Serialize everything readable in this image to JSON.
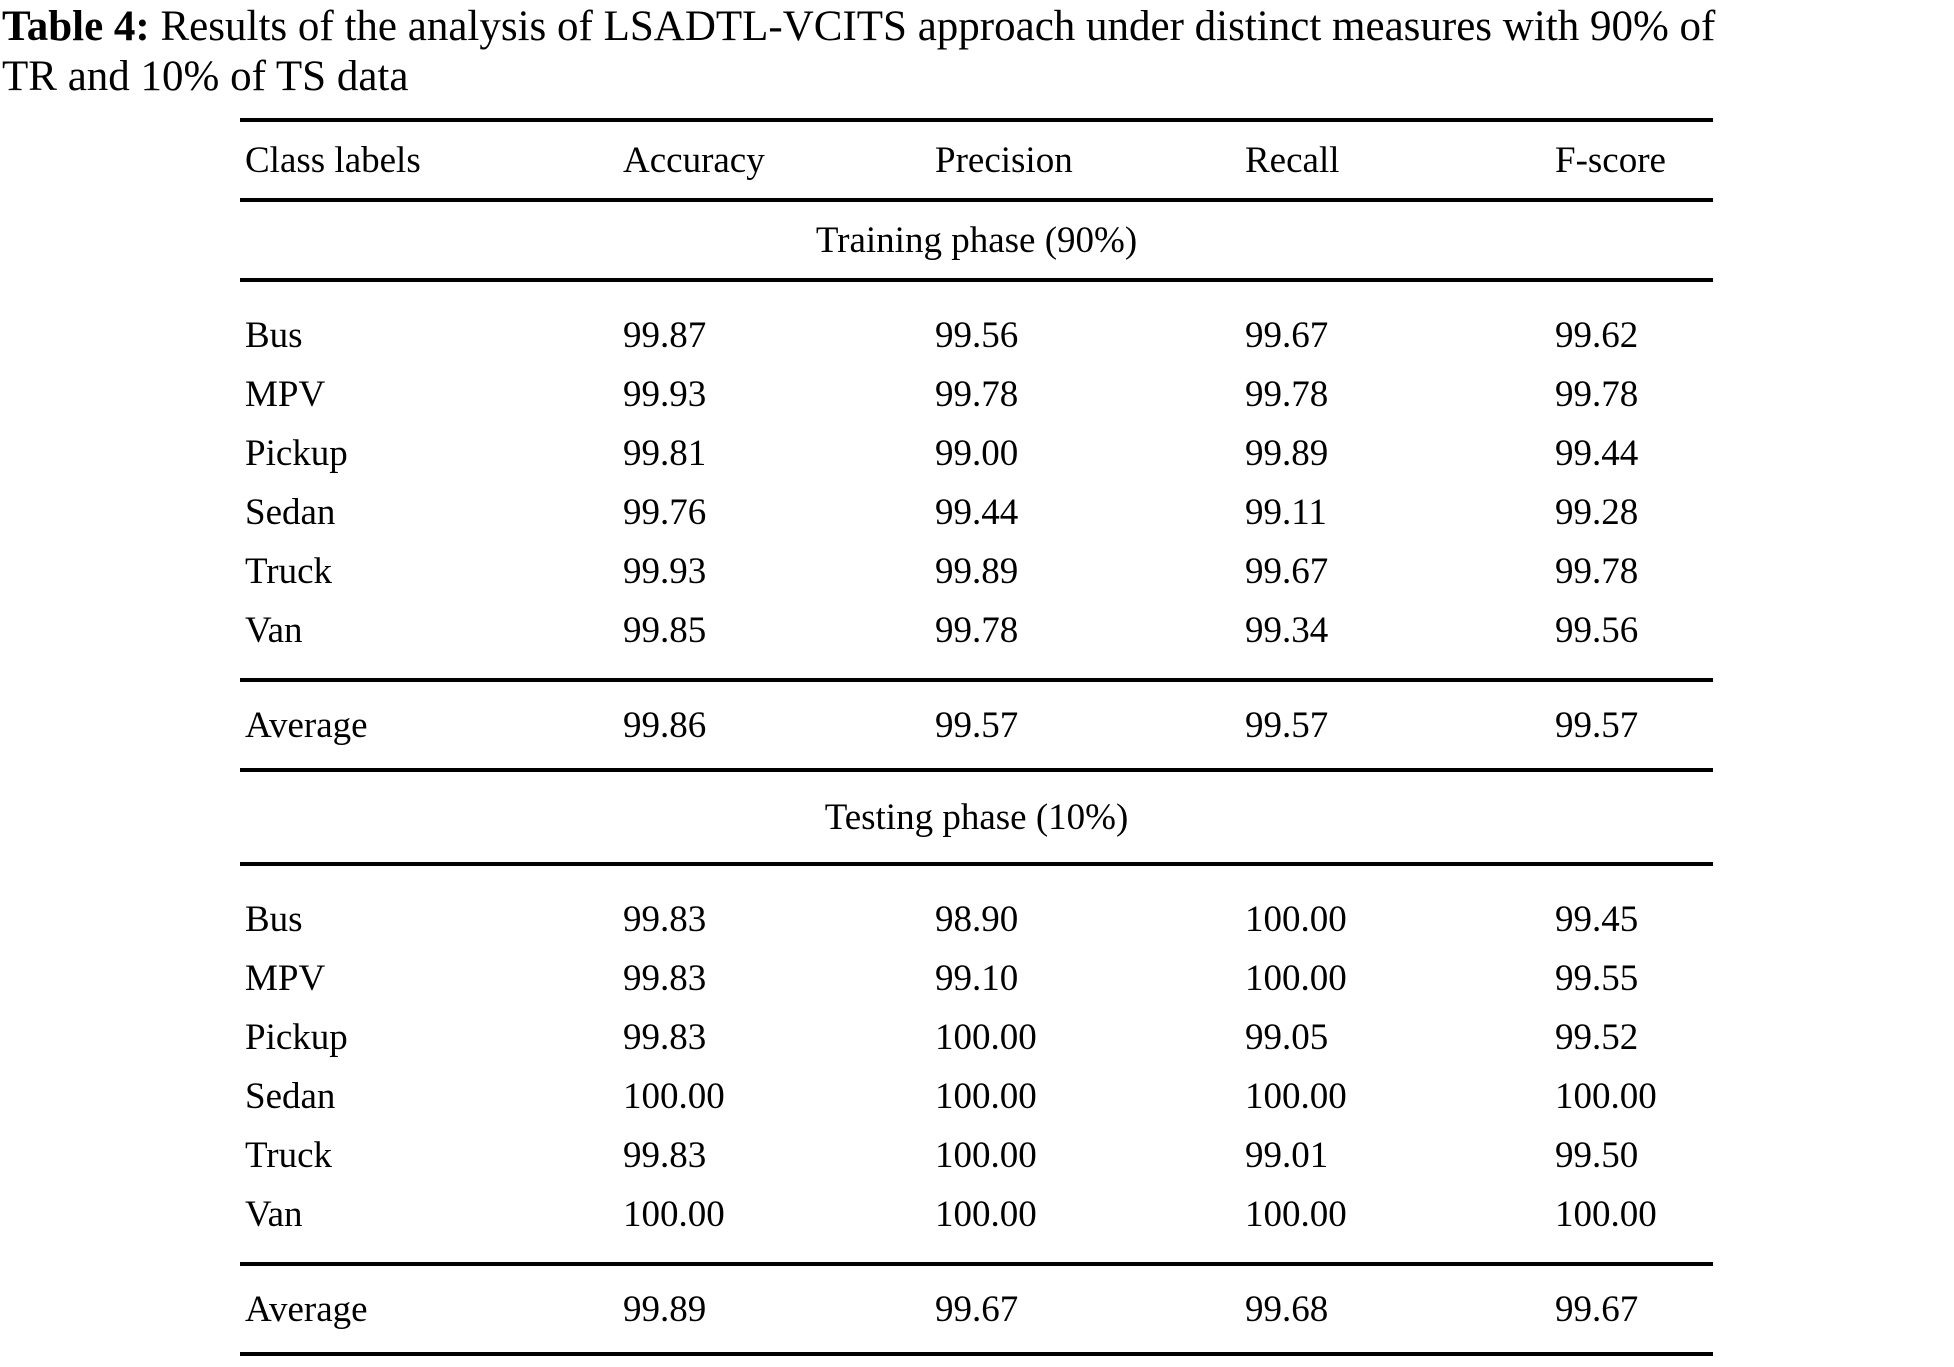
{
  "title": {
    "prefix": "Table 4:",
    "line1_rest": " Results of the analysis of LSADTL-VCITS approach under distinct measures with 90% of",
    "line2": "TR and 10% of TS data"
  },
  "table": {
    "columns": [
      "Class labels",
      "Accuracy",
      "Precision",
      "Recall",
      "F-score"
    ],
    "sections": [
      {
        "header": "Training phase (90%)",
        "rows": [
          {
            "label": "Bus",
            "values": [
              "99.87",
              "99.56",
              "99.67",
              "99.62"
            ]
          },
          {
            "label": "MPV",
            "values": [
              "99.93",
              "99.78",
              "99.78",
              "99.78"
            ]
          },
          {
            "label": "Pickup",
            "values": [
              "99.81",
              "99.00",
              "99.89",
              "99.44"
            ]
          },
          {
            "label": "Sedan",
            "values": [
              "99.76",
              "99.44",
              "99.11",
              "99.28"
            ]
          },
          {
            "label": "Truck",
            "values": [
              "99.93",
              "99.89",
              "99.67",
              "99.78"
            ]
          },
          {
            "label": "Van",
            "values": [
              "99.85",
              "99.78",
              "99.34",
              "99.56"
            ]
          }
        ],
        "average": {
          "label": "Average",
          "values": [
            "99.86",
            "99.57",
            "99.57",
            "99.57"
          ]
        }
      },
      {
        "header": "Testing phase (10%)",
        "rows": [
          {
            "label": "Bus",
            "values": [
              "99.83",
              "98.90",
              "100.00",
              "99.45"
            ]
          },
          {
            "label": "MPV",
            "values": [
              "99.83",
              "99.10",
              "100.00",
              "99.55"
            ]
          },
          {
            "label": "Pickup",
            "values": [
              "99.83",
              "100.00",
              "99.05",
              "99.52"
            ]
          },
          {
            "label": "Sedan",
            "values": [
              "100.00",
              "100.00",
              "100.00",
              "100.00"
            ]
          },
          {
            "label": "Truck",
            "values": [
              "99.83",
              "100.00",
              "99.01",
              "99.50"
            ]
          },
          {
            "label": "Van",
            "values": [
              "100.00",
              "100.00",
              "100.00",
              "100.00"
            ]
          }
        ],
        "average": {
          "label": "Average",
          "values": [
            "99.89",
            "99.67",
            "99.68",
            "99.67"
          ]
        }
      }
    ]
  }
}
